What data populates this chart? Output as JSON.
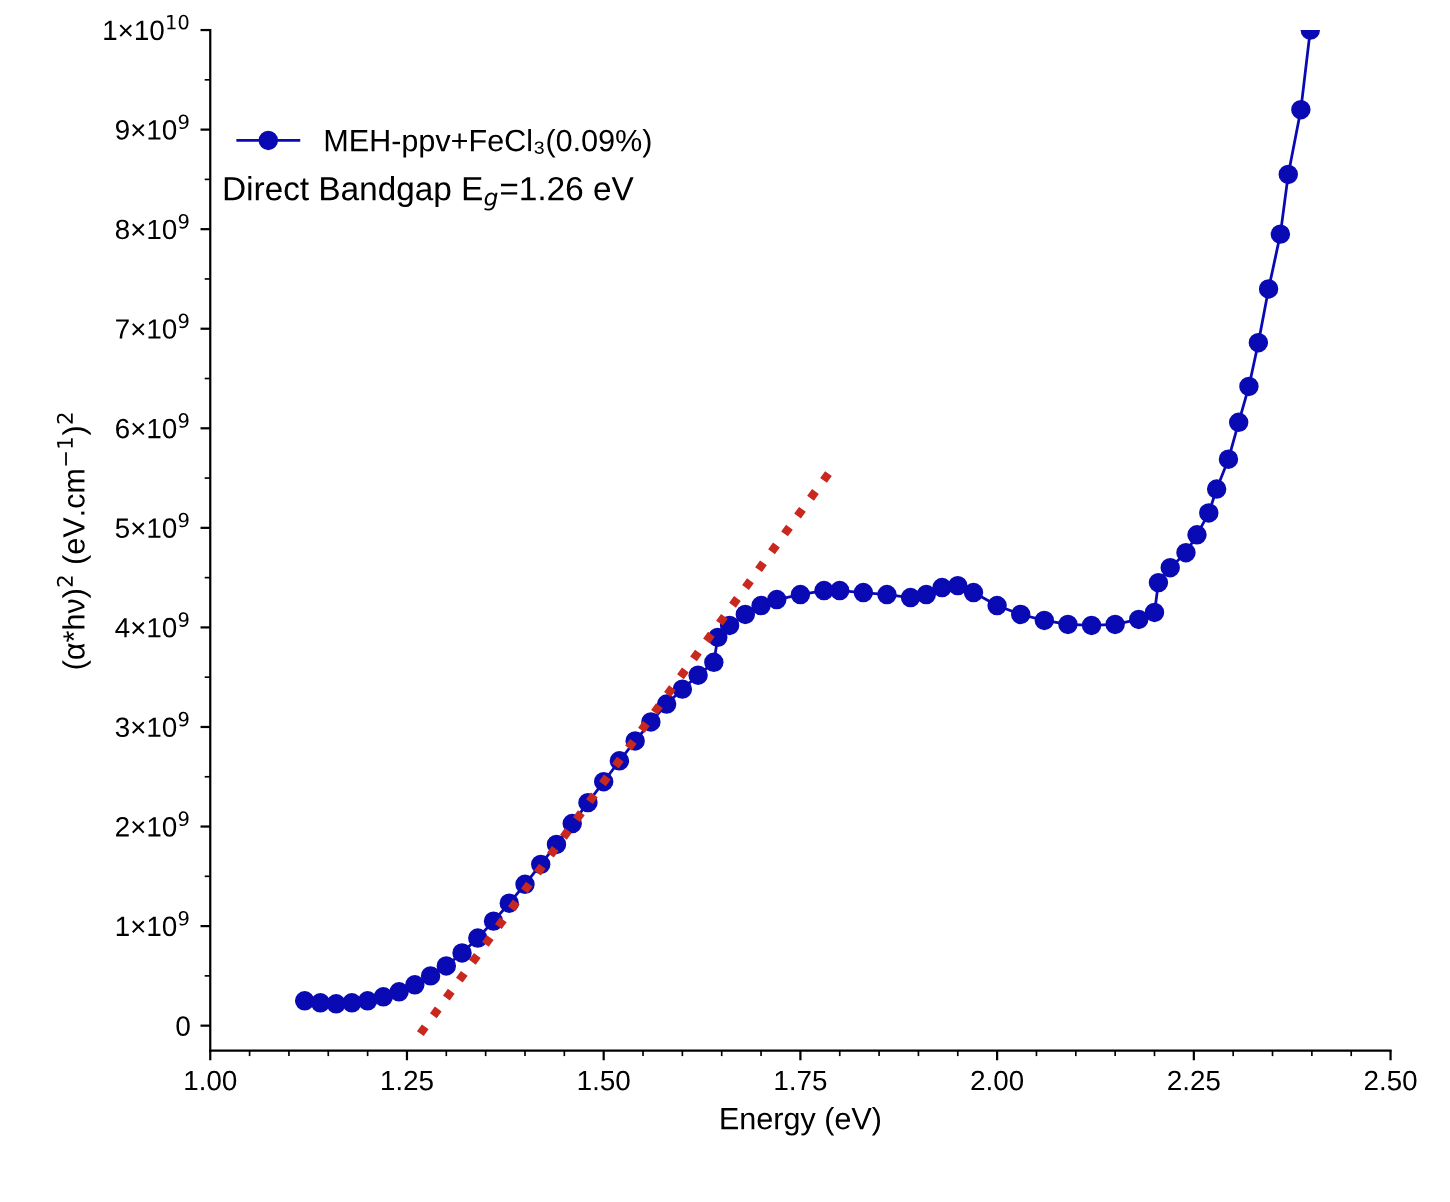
{
  "chart_data": {
    "type": "line",
    "xlabel": "Energy (eV)",
    "ylabel": "(α*hν)$^{2}$ (eV.cm$^{−1}$)$^{2}$",
    "xlim": [
      1.0,
      2.5
    ],
    "xticks": [
      {
        "value": 1.0,
        "label": "1.00"
      },
      {
        "value": 1.25,
        "label": "1.25"
      },
      {
        "value": 1.5,
        "label": "1.50"
      },
      {
        "value": 1.75,
        "label": "1.75"
      },
      {
        "value": 2.0,
        "label": "2.00"
      },
      {
        "value": 2.25,
        "label": "2.25"
      },
      {
        "value": 2.5,
        "label": "2.50"
      }
    ],
    "ylim": [
      -250000000,
      10000000000
    ],
    "yticks": [
      0,
      {
        "value": 1000000000,
        "label": "1×10$^{9}$"
      },
      {
        "value": 2000000000,
        "label": "2×10$^{9}$"
      },
      {
        "value": 3000000000,
        "label": "3×10$^{9}$"
      },
      {
        "value": 4000000000,
        "label": "4×10$^{9}$"
      },
      {
        "value": 5000000000,
        "label": "5×10$^{9}$"
      },
      {
        "value": 6000000000,
        "label": "6×10$^{9}$"
      },
      {
        "value": 7000000000,
        "label": "7×10$^{9}$"
      },
      {
        "value": 8000000000,
        "label": "8×10$^{9}$"
      },
      {
        "value": 9000000000,
        "label": "9×10$^{9}$"
      },
      {
        "value": 10000000000,
        "label": "1×10$^{10}$"
      }
    ],
    "grid": false,
    "legend": "top left",
    "marker": "circle",
    "annotations": [
      "Direct Bandgap E$_{g}$=1.26 eV"
    ],
    "series": [
      {
        "name": "MEH-ppv+FeCl₃(0.09%)",
        "color": "#0a0ab4",
        "x": [
          1.12,
          1.14,
          1.16,
          1.18,
          1.2,
          1.22,
          1.24,
          1.26,
          1.28,
          1.3,
          1.32,
          1.34,
          1.36,
          1.38,
          1.4,
          1.42,
          1.44,
          1.46,
          1.48,
          1.5,
          1.52,
          1.54,
          1.56,
          1.58,
          1.6,
          1.62,
          1.64,
          1.645,
          1.66,
          1.68,
          1.7,
          1.72,
          1.75,
          1.78,
          1.8,
          1.83,
          1.86,
          1.89,
          1.91,
          1.93,
          1.95,
          1.97,
          2.0,
          2.03,
          2.06,
          2.09,
          2.12,
          2.15,
          2.18,
          2.2,
          2.205,
          2.22,
          2.24,
          2.254,
          2.269,
          2.279,
          2.294,
          2.307,
          2.32,
          2.332,
          2.345,
          2.36,
          2.37,
          2.386,
          2.398
        ],
        "values": [
          250000000,
          230000000,
          220000000,
          230000000,
          250000000,
          290000000,
          340000000,
          410000000,
          500000000,
          600000000,
          730000000,
          880000000,
          1050000000,
          1230000000,
          1420000000,
          1620000000,
          1820000000,
          2030000000,
          2240000000,
          2450000000,
          2660000000,
          2860000000,
          3050000000,
          3230000000,
          3380000000,
          3520000000,
          3650000000,
          3900000000,
          4020000000,
          4130000000,
          4220000000,
          4280000000,
          4330000000,
          4370000000,
          4370000000,
          4350000000,
          4330000000,
          4300000000,
          4330000000,
          4400000000,
          4420000000,
          4350000000,
          4220000000,
          4130000000,
          4070000000,
          4030000000,
          4020000000,
          4030000000,
          4080000000,
          4150000000,
          4450000000,
          4600000000,
          4750000000,
          4930000000,
          5150000000,
          5390000000,
          5690000000,
          6060000000,
          6420000000,
          6860000000,
          7400000000,
          7950000000,
          8550000000,
          9200000000,
          10000000000
        ]
      },
      {
        "marker": "none",
        "line_style": "dotted",
        "color": "#c8281e",
        "x": [
          1.267,
          1.788
        ],
        "values": [
          -80000000,
          5570000000
        ]
      }
    ]
  }
}
